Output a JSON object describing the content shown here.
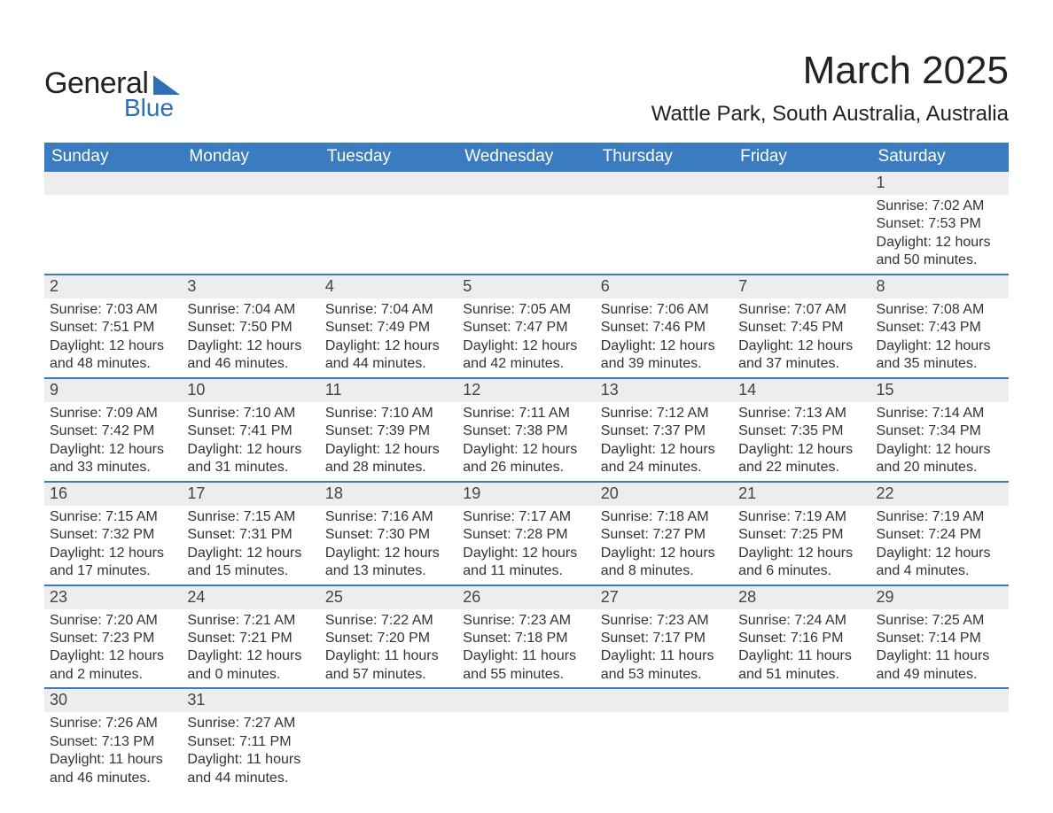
{
  "logo": {
    "general": "General",
    "blue": "Blue",
    "triangle_color": "#2d70b4"
  },
  "title": {
    "month": "March 2025",
    "location": "Wattle Park, South Australia, Australia"
  },
  "colors": {
    "header_bg": "#3b7bbf",
    "header_text": "#ffffff",
    "daynum_bg": "#ededed",
    "row_border": "#3b7bbf",
    "text": "#333333",
    "background": "#ffffff"
  },
  "calendar": {
    "day_headers": [
      "Sunday",
      "Monday",
      "Tuesday",
      "Wednesday",
      "Thursday",
      "Friday",
      "Saturday"
    ],
    "weeks": [
      [
        {
          "num": "",
          "sunrise": "",
          "sunset": "",
          "daylight": ""
        },
        {
          "num": "",
          "sunrise": "",
          "sunset": "",
          "daylight": ""
        },
        {
          "num": "",
          "sunrise": "",
          "sunset": "",
          "daylight": ""
        },
        {
          "num": "",
          "sunrise": "",
          "sunset": "",
          "daylight": ""
        },
        {
          "num": "",
          "sunrise": "",
          "sunset": "",
          "daylight": ""
        },
        {
          "num": "",
          "sunrise": "",
          "sunset": "",
          "daylight": ""
        },
        {
          "num": "1",
          "sunrise": "Sunrise: 7:02 AM",
          "sunset": "Sunset: 7:53 PM",
          "daylight": "Daylight: 12 hours and 50 minutes."
        }
      ],
      [
        {
          "num": "2",
          "sunrise": "Sunrise: 7:03 AM",
          "sunset": "Sunset: 7:51 PM",
          "daylight": "Daylight: 12 hours and 48 minutes."
        },
        {
          "num": "3",
          "sunrise": "Sunrise: 7:04 AM",
          "sunset": "Sunset: 7:50 PM",
          "daylight": "Daylight: 12 hours and 46 minutes."
        },
        {
          "num": "4",
          "sunrise": "Sunrise: 7:04 AM",
          "sunset": "Sunset: 7:49 PM",
          "daylight": "Daylight: 12 hours and 44 minutes."
        },
        {
          "num": "5",
          "sunrise": "Sunrise: 7:05 AM",
          "sunset": "Sunset: 7:47 PM",
          "daylight": "Daylight: 12 hours and 42 minutes."
        },
        {
          "num": "6",
          "sunrise": "Sunrise: 7:06 AM",
          "sunset": "Sunset: 7:46 PM",
          "daylight": "Daylight: 12 hours and 39 minutes."
        },
        {
          "num": "7",
          "sunrise": "Sunrise: 7:07 AM",
          "sunset": "Sunset: 7:45 PM",
          "daylight": "Daylight: 12 hours and 37 minutes."
        },
        {
          "num": "8",
          "sunrise": "Sunrise: 7:08 AM",
          "sunset": "Sunset: 7:43 PM",
          "daylight": "Daylight: 12 hours and 35 minutes."
        }
      ],
      [
        {
          "num": "9",
          "sunrise": "Sunrise: 7:09 AM",
          "sunset": "Sunset: 7:42 PM",
          "daylight": "Daylight: 12 hours and 33 minutes."
        },
        {
          "num": "10",
          "sunrise": "Sunrise: 7:10 AM",
          "sunset": "Sunset: 7:41 PM",
          "daylight": "Daylight: 12 hours and 31 minutes."
        },
        {
          "num": "11",
          "sunrise": "Sunrise: 7:10 AM",
          "sunset": "Sunset: 7:39 PM",
          "daylight": "Daylight: 12 hours and 28 minutes."
        },
        {
          "num": "12",
          "sunrise": "Sunrise: 7:11 AM",
          "sunset": "Sunset: 7:38 PM",
          "daylight": "Daylight: 12 hours and 26 minutes."
        },
        {
          "num": "13",
          "sunrise": "Sunrise: 7:12 AM",
          "sunset": "Sunset: 7:37 PM",
          "daylight": "Daylight: 12 hours and 24 minutes."
        },
        {
          "num": "14",
          "sunrise": "Sunrise: 7:13 AM",
          "sunset": "Sunset: 7:35 PM",
          "daylight": "Daylight: 12 hours and 22 minutes."
        },
        {
          "num": "15",
          "sunrise": "Sunrise: 7:14 AM",
          "sunset": "Sunset: 7:34 PM",
          "daylight": "Daylight: 12 hours and 20 minutes."
        }
      ],
      [
        {
          "num": "16",
          "sunrise": "Sunrise: 7:15 AM",
          "sunset": "Sunset: 7:32 PM",
          "daylight": "Daylight: 12 hours and 17 minutes."
        },
        {
          "num": "17",
          "sunrise": "Sunrise: 7:15 AM",
          "sunset": "Sunset: 7:31 PM",
          "daylight": "Daylight: 12 hours and 15 minutes."
        },
        {
          "num": "18",
          "sunrise": "Sunrise: 7:16 AM",
          "sunset": "Sunset: 7:30 PM",
          "daylight": "Daylight: 12 hours and 13 minutes."
        },
        {
          "num": "19",
          "sunrise": "Sunrise: 7:17 AM",
          "sunset": "Sunset: 7:28 PM",
          "daylight": "Daylight: 12 hours and 11 minutes."
        },
        {
          "num": "20",
          "sunrise": "Sunrise: 7:18 AM",
          "sunset": "Sunset: 7:27 PM",
          "daylight": "Daylight: 12 hours and 8 minutes."
        },
        {
          "num": "21",
          "sunrise": "Sunrise: 7:19 AM",
          "sunset": "Sunset: 7:25 PM",
          "daylight": "Daylight: 12 hours and 6 minutes."
        },
        {
          "num": "22",
          "sunrise": "Sunrise: 7:19 AM",
          "sunset": "Sunset: 7:24 PM",
          "daylight": "Daylight: 12 hours and 4 minutes."
        }
      ],
      [
        {
          "num": "23",
          "sunrise": "Sunrise: 7:20 AM",
          "sunset": "Sunset: 7:23 PM",
          "daylight": "Daylight: 12 hours and 2 minutes."
        },
        {
          "num": "24",
          "sunrise": "Sunrise: 7:21 AM",
          "sunset": "Sunset: 7:21 PM",
          "daylight": "Daylight: 12 hours and 0 minutes."
        },
        {
          "num": "25",
          "sunrise": "Sunrise: 7:22 AM",
          "sunset": "Sunset: 7:20 PM",
          "daylight": "Daylight: 11 hours and 57 minutes."
        },
        {
          "num": "26",
          "sunrise": "Sunrise: 7:23 AM",
          "sunset": "Sunset: 7:18 PM",
          "daylight": "Daylight: 11 hours and 55 minutes."
        },
        {
          "num": "27",
          "sunrise": "Sunrise: 7:23 AM",
          "sunset": "Sunset: 7:17 PM",
          "daylight": "Daylight: 11 hours and 53 minutes."
        },
        {
          "num": "28",
          "sunrise": "Sunrise: 7:24 AM",
          "sunset": "Sunset: 7:16 PM",
          "daylight": "Daylight: 11 hours and 51 minutes."
        },
        {
          "num": "29",
          "sunrise": "Sunrise: 7:25 AM",
          "sunset": "Sunset: 7:14 PM",
          "daylight": "Daylight: 11 hours and 49 minutes."
        }
      ],
      [
        {
          "num": "30",
          "sunrise": "Sunrise: 7:26 AM",
          "sunset": "Sunset: 7:13 PM",
          "daylight": "Daylight: 11 hours and 46 minutes."
        },
        {
          "num": "31",
          "sunrise": "Sunrise: 7:27 AM",
          "sunset": "Sunset: 7:11 PM",
          "daylight": "Daylight: 11 hours and 44 minutes."
        },
        {
          "num": "",
          "sunrise": "",
          "sunset": "",
          "daylight": ""
        },
        {
          "num": "",
          "sunrise": "",
          "sunset": "",
          "daylight": ""
        },
        {
          "num": "",
          "sunrise": "",
          "sunset": "",
          "daylight": ""
        },
        {
          "num": "",
          "sunrise": "",
          "sunset": "",
          "daylight": ""
        },
        {
          "num": "",
          "sunrise": "",
          "sunset": "",
          "daylight": ""
        }
      ]
    ]
  }
}
